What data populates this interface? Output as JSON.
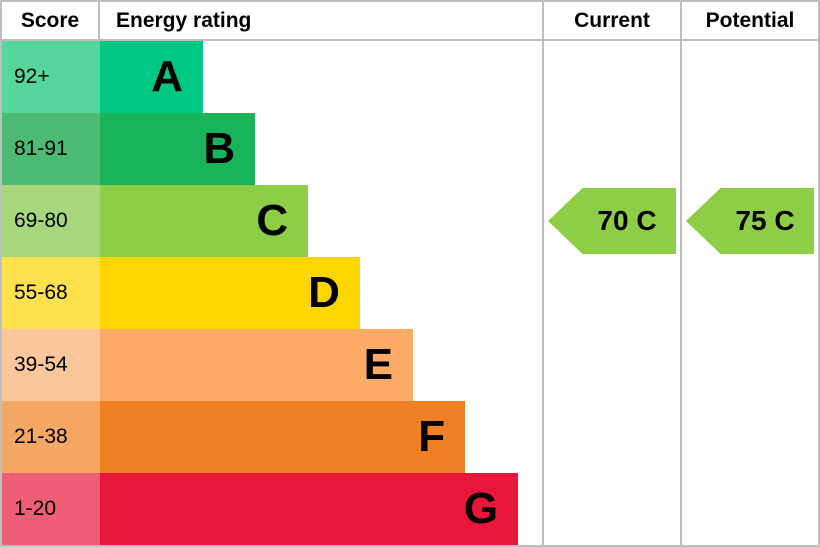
{
  "header": {
    "score": "Score",
    "energy_rating": "Energy rating",
    "current": "Current",
    "potential": "Potential"
  },
  "bands": [
    {
      "letter": "A",
      "score": "92+",
      "color": "#00c781",
      "tint": "#55d69b",
      "width_pct": 23.3
    },
    {
      "letter": "B",
      "score": "81-91",
      "color": "#19b459",
      "tint": "#4dba73",
      "width_pct": 35.1
    },
    {
      "letter": "C",
      "score": "69-80",
      "color": "#8dce46",
      "tint": "#a8d67d",
      "width_pct": 47.1
    },
    {
      "letter": "D",
      "score": "55-68",
      "color": "#ffd500",
      "tint": "#ffe14d",
      "width_pct": 58.8
    },
    {
      "letter": "E",
      "score": "39-54",
      "color": "#fcaa65",
      "tint": "#fac69b",
      "width_pct": 70.8
    },
    {
      "letter": "F",
      "score": "21-38",
      "color": "#ef8023",
      "tint": "#f4a864",
      "width_pct": 82.6
    },
    {
      "letter": "G",
      "score": "1-20",
      "color": "#e9153b",
      "tint": "#ee5e74",
      "width_pct": 94.6
    }
  ],
  "current": {
    "label": "70 C",
    "value": 70,
    "rating": "C",
    "color": "#8dce46",
    "band_row": 2
  },
  "potential": {
    "label": "75 C",
    "value": 75,
    "rating": "C",
    "color": "#8dce46",
    "band_row": 2
  },
  "colors": {
    "border": "#bcbec0",
    "background": "#ffffff",
    "text": "#000000"
  },
  "chart_data": {
    "type": "bar",
    "title": "Energy rating",
    "orientation": "horizontal",
    "categories": [
      "A",
      "B",
      "C",
      "D",
      "E",
      "F",
      "G"
    ],
    "score_ranges": [
      "92+",
      "81-91",
      "69-80",
      "55-68",
      "39-54",
      "21-38",
      "1-20"
    ],
    "bar_lengths_pct": [
      23.3,
      35.1,
      47.1,
      58.8,
      70.8,
      82.6,
      94.6
    ],
    "bar_colors": [
      "#00c781",
      "#19b459",
      "#8dce46",
      "#ffd500",
      "#fcaa65",
      "#ef8023",
      "#e9153b"
    ],
    "markers": [
      {
        "label": "Current",
        "value": 70,
        "rating": "C",
        "color": "#8dce46"
      },
      {
        "label": "Potential",
        "value": 75,
        "rating": "C",
        "color": "#8dce46"
      }
    ],
    "grid": false,
    "legend_position": "none"
  }
}
